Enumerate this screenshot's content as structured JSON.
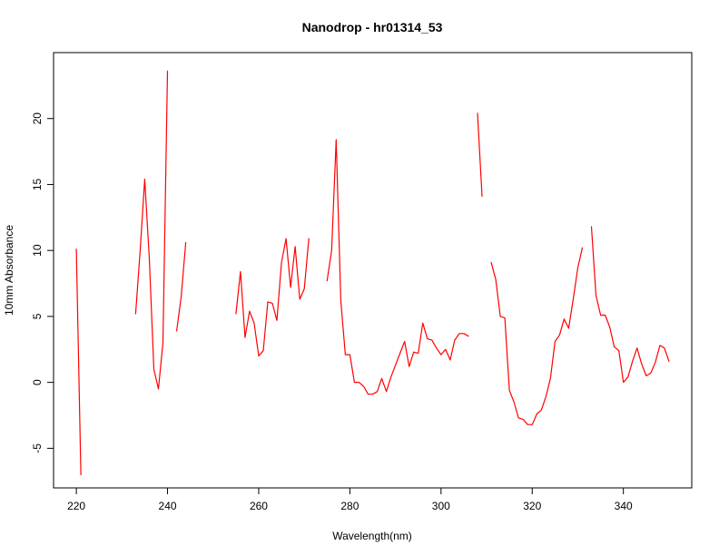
{
  "chart_data": {
    "type": "line",
    "title": "Nanodrop - hr01314_53",
    "xlabel": "Wavelength(nm)",
    "ylabel": "10mm Absorbance",
    "xlim": [
      215,
      355
    ],
    "ylim": [
      -8,
      25
    ],
    "xticks": [
      220,
      240,
      260,
      280,
      300,
      320,
      340
    ],
    "yticks": [
      -5,
      0,
      5,
      10,
      15,
      20
    ],
    "grid": false,
    "legend": "none",
    "color": "#ff0000",
    "series": [
      {
        "segments": [
          {
            "x": [
              220,
              221
            ],
            "y": [
              10.1,
              -7.0
            ]
          },
          {
            "x": [
              233,
              234,
              235,
              236,
              237,
              238,
              239,
              240
            ],
            "y": [
              5.2,
              10.0,
              15.4,
              9.5,
              1.0,
              -0.5,
              3.0,
              23.6
            ]
          },
          {
            "x": [
              242,
              243,
              244
            ],
            "y": [
              3.9,
              6.5,
              10.6
            ]
          },
          {
            "x": [
              255,
              256,
              257,
              258,
              259,
              260,
              261,
              262,
              263,
              264,
              265,
              266,
              267,
              268,
              269,
              270,
              271
            ],
            "y": [
              5.2,
              8.4,
              3.4,
              5.4,
              4.5,
              2.0,
              2.4,
              6.1,
              6.0,
              4.7,
              9.1,
              10.9,
              7.2,
              10.3,
              6.3,
              7.1,
              10.9
            ]
          },
          {
            "x": [
              275,
              276,
              277,
              278,
              279,
              280,
              281,
              282,
              283,
              284,
              285,
              286,
              287,
              288,
              289,
              290,
              291,
              292,
              293,
              294,
              295,
              296,
              297,
              298,
              299,
              300,
              301,
              302,
              303,
              304,
              305,
              306
            ],
            "y": [
              7.7,
              10.0,
              18.4,
              6.2,
              2.1,
              2.1,
              0.0,
              0.0,
              -0.3,
              -0.9,
              -0.9,
              -0.7,
              0.3,
              -0.7,
              0.4,
              1.3,
              2.2,
              3.1,
              1.2,
              2.3,
              2.2,
              4.5,
              3.3,
              3.2,
              2.6,
              2.1,
              2.5,
              1.7,
              3.2,
              3.7,
              3.7,
              3.5
            ]
          },
          {
            "x": [
              308,
              309
            ],
            "y": [
              20.4,
              14.1
            ]
          },
          {
            "x": [
              311,
              312,
              313,
              314,
              315,
              316,
              317,
              318,
              319,
              320,
              321,
              322,
              323,
              324,
              325,
              326,
              327,
              328,
              329,
              330,
              331
            ],
            "y": [
              9.1,
              7.8,
              5.0,
              4.9,
              -0.6,
              -1.5,
              -2.7,
              -2.8,
              -3.2,
              -3.2,
              -2.4,
              -2.1,
              -1.1,
              0.3,
              3.1,
              3.6,
              4.8,
              4.1,
              6.3,
              8.7,
              10.2
            ]
          },
          {
            "x": [
              333,
              334,
              335,
              336,
              337,
              338,
              339,
              340,
              341,
              342,
              343,
              344,
              345,
              346,
              347,
              348,
              349,
              350
            ],
            "y": [
              11.8,
              6.6,
              5.1,
              5.1,
              4.2,
              2.7,
              2.4,
              0.0,
              0.4,
              1.6,
              2.6,
              1.4,
              0.5,
              0.7,
              1.5,
              2.8,
              2.6,
              1.6
            ]
          }
        ]
      }
    ]
  }
}
